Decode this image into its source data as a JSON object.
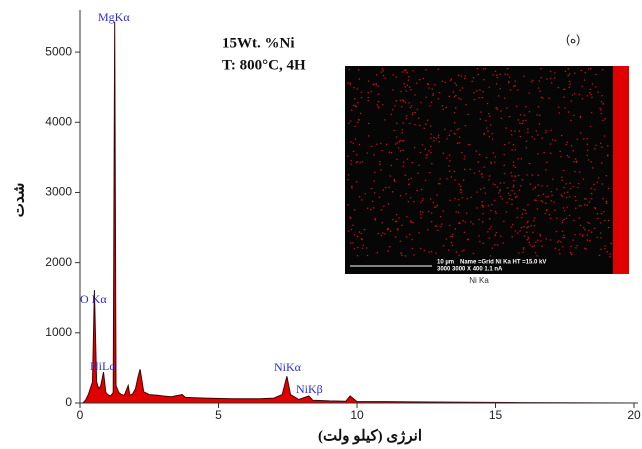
{
  "chart_data": {
    "type": "area",
    "color": "#e00000",
    "x_label": "انرژی (کیلو ولت)",
    "y_label": "شدت",
    "x": [
      0.1,
      0.2,
      0.3,
      0.45,
      0.52,
      0.6,
      0.68,
      0.75,
      0.85,
      0.93,
      1.0,
      1.1,
      1.2,
      1.254,
      1.3,
      1.4,
      1.5,
      1.6,
      1.74,
      1.8,
      1.9,
      2.0,
      2.1,
      2.17,
      2.3,
      2.5,
      2.8,
      3.0,
      3.3,
      3.69,
      3.8,
      4.5,
      5.5,
      6.5,
      7.0,
      7.3,
      7.47,
      7.6,
      7.9,
      8.26,
      8.4,
      9.0,
      9.6,
      9.75,
      10.0,
      11,
      12,
      14,
      16,
      17.5,
      20
    ],
    "values": [
      0,
      40,
      120,
      300,
      1610,
      300,
      200,
      250,
      440,
      150,
      120,
      100,
      150,
      5430,
      250,
      150,
      120,
      110,
      250,
      110,
      130,
      200,
      380,
      480,
      160,
      120,
      110,
      100,
      90,
      120,
      80,
      70,
      60,
      60,
      70,
      120,
      380,
      120,
      50,
      100,
      40,
      30,
      25,
      100,
      20,
      20,
      15,
      10,
      5,
      3,
      0
    ],
    "xlim": [
      0,
      20
    ],
    "xticks": [
      0,
      5,
      10,
      15,
      20
    ],
    "ylim": [
      0,
      5600
    ],
    "yticks": [
      0,
      1000,
      2000,
      3000,
      4000,
      5000
    ],
    "annotations": {
      "mg": "MgKα",
      "o": "O Kα",
      "nil": "NiLα",
      "nika": "NiKα",
      "nikb": "NiKβ",
      "sample": "15Wt. %Ni",
      "condition": "T: 800°C, 4H",
      "panel": "(ه)"
    },
    "inset": {
      "scale_bar": "10 µm",
      "info_line1": "Name =Grid Ni Ka   HT =15.0 kV",
      "info_line2": "3000 3000 X   400 1.1 nA",
      "caption": "Ni Ka"
    }
  }
}
